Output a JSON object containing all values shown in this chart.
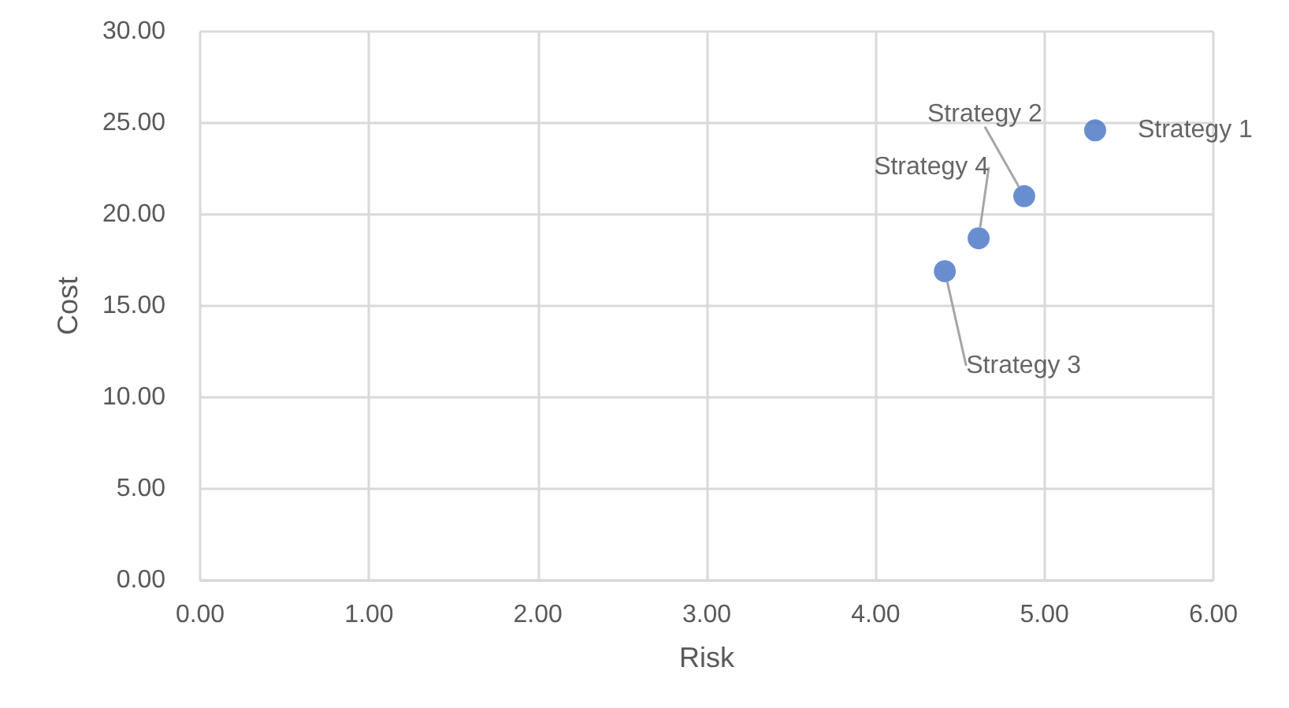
{
  "chart_data": {
    "type": "scatter",
    "xlabel": "Risk",
    "ylabel": "Cost",
    "series": [
      {
        "name": "Strategy 1",
        "color": "#4472c4",
        "x": [
          5.3
        ],
        "values": [
          24.6
        ]
      },
      {
        "name": "Strategy 2",
        "color": "#4472c4",
        "x": [
          4.88
        ],
        "values": [
          21.0
        ]
      },
      {
        "name": "Strategy 3",
        "color": "#4472c4",
        "x": [
          4.41
        ],
        "values": [
          16.9
        ]
      },
      {
        "name": "Strategy 4",
        "color": "#4472c4",
        "x": [
          4.61
        ],
        "values": [
          18.7
        ]
      }
    ],
    "xlim": [
      0,
      6
    ],
    "xticks": [
      {
        "value": 0,
        "label": "0.00"
      },
      {
        "value": 1,
        "label": "1.00"
      },
      {
        "value": 2,
        "label": "2.00"
      },
      {
        "value": 3,
        "label": "3.00"
      },
      {
        "value": 4,
        "label": "4.00"
      },
      {
        "value": 5,
        "label": "5.00"
      },
      {
        "value": 6,
        "label": "6.00"
      }
    ],
    "ylim": [
      0,
      30
    ],
    "yticks": [
      {
        "value": 0,
        "label": "0.00"
      },
      {
        "value": 5,
        "label": "5.00"
      },
      {
        "value": 10,
        "label": "10.00"
      },
      {
        "value": 15,
        "label": "15.00"
      },
      {
        "value": 20,
        "label": "20.00"
      },
      {
        "value": 25,
        "label": "25.00"
      },
      {
        "value": 30,
        "label": "30.00"
      }
    ],
    "grid": true,
    "marker": "circle",
    "legend": false
  }
}
